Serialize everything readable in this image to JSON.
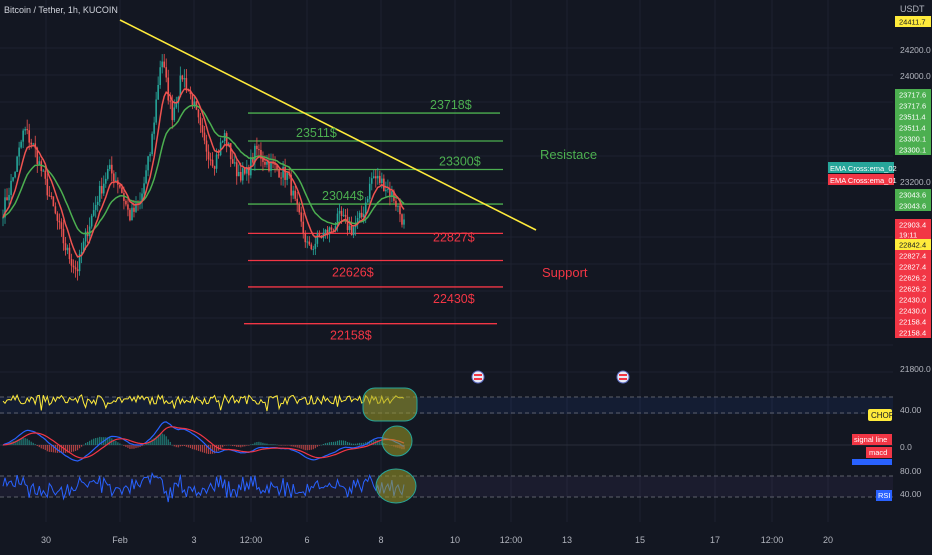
{
  "header": {
    "symbol_title": "Bitcoin / Tether, 1h, KUCOIN",
    "currency": "USDT"
  },
  "colors": {
    "background": "#131722",
    "grid": "#1e2230",
    "candle_up": "#26a69a",
    "candle_down": "#ef5350",
    "ema_fast": "#ef5350",
    "ema_slow": "#4caf50",
    "trendline": "#ffeb3b",
    "resistance": "#4caf50",
    "support": "#f23645",
    "chop_line": "#ffeb3b",
    "macd_line": "#2962ff",
    "signal_line": "#f23645",
    "rsi_line": "#2962ff",
    "highlight": "#9e9d24"
  },
  "icons": {
    "event_flag": "us-flag-event-icon"
  },
  "chart_data": {
    "type": "candlestick",
    "symbol": "Bitcoin / Tether",
    "interval": "1h",
    "exchange": "KUCOIN",
    "x_ticks": [
      "30",
      "Feb",
      "3",
      "12:00",
      "6",
      "8",
      "10",
      "12:00",
      "13",
      "15",
      "17",
      "12:00",
      "20"
    ],
    "y_ticks": [
      21800,
      22000,
      22200,
      22400,
      22600,
      22800,
      23000,
      23200,
      23400,
      23600,
      23800,
      24000,
      24200
    ],
    "y_tick_labels": [
      "21800.0",
      "24000.0",
      "24200.0",
      "23200.0"
    ],
    "ylim": [
      21700,
      24500
    ],
    "series": [
      {
        "name": "EMA Cross:ema_02",
        "color": "#4caf50"
      },
      {
        "name": "EMA Cross:ema_01",
        "color": "#ef5350"
      }
    ],
    "price_path": [
      23000,
      23250,
      23600,
      23450,
      23200,
      22950,
      22700,
      22550,
      22850,
      23100,
      23300,
      23200,
      22950,
      23050,
      23450,
      24150,
      23700,
      24000,
      23800,
      23500,
      23350,
      23550,
      23300,
      23250,
      23450,
      23350,
      23300,
      23250,
      22950,
      22700,
      22800,
      22850,
      22950,
      22850,
      22950,
      23250,
      23200,
      23100,
      22900
    ],
    "resistance_levels": [
      {
        "value": 23718,
        "label": "23718$"
      },
      {
        "value": 23511,
        "label": "23511$"
      },
      {
        "value": 23300,
        "label": "23300$"
      },
      {
        "value": 23044,
        "label": "23044$"
      }
    ],
    "support_levels": [
      {
        "value": 22827,
        "label": "22827$"
      },
      {
        "value": 22626,
        "label": "22626$"
      },
      {
        "value": 22430,
        "label": "22430$"
      },
      {
        "value": 22158,
        "label": "22158$"
      }
    ],
    "annotations": [
      "Resistace",
      "Support"
    ],
    "price_axis_tags": [
      {
        "text": "24411.7",
        "kind": "yellow"
      },
      {
        "text": "23717.6",
        "kind": "green"
      },
      {
        "text": "23717.6",
        "kind": "green"
      },
      {
        "text": "23511.4",
        "kind": "green"
      },
      {
        "text": "23511.4",
        "kind": "green"
      },
      {
        "text": "23300.1",
        "kind": "green"
      },
      {
        "text": "23300.1",
        "kind": "green"
      },
      {
        "text": "23043.6",
        "kind": "green"
      },
      {
        "text": "23043.6",
        "kind": "green"
      },
      {
        "text": "22903.4",
        "kind": "red"
      },
      {
        "text": "19:11",
        "kind": "red"
      },
      {
        "text": "22842.4",
        "kind": "yellow"
      },
      {
        "text": "22827.4",
        "kind": "red"
      },
      {
        "text": "22827.4",
        "kind": "red"
      },
      {
        "text": "22626.2",
        "kind": "red"
      },
      {
        "text": "22626.2",
        "kind": "red"
      },
      {
        "text": "22430.0",
        "kind": "red"
      },
      {
        "text": "22430.0",
        "kind": "red"
      },
      {
        "text": "22158.4",
        "kind": "red"
      },
      {
        "text": "22158.4",
        "kind": "red"
      }
    ],
    "indicators": [
      {
        "name": "CHOP",
        "axis_labels": [
          "40.00"
        ]
      },
      {
        "name": "MACD",
        "axis_labels": [
          "0.0"
        ],
        "legend": [
          "signal line",
          "macd"
        ]
      },
      {
        "name": "RSI",
        "axis_labels": [
          "80.00",
          "40.00"
        ]
      }
    ],
    "grid": true
  }
}
